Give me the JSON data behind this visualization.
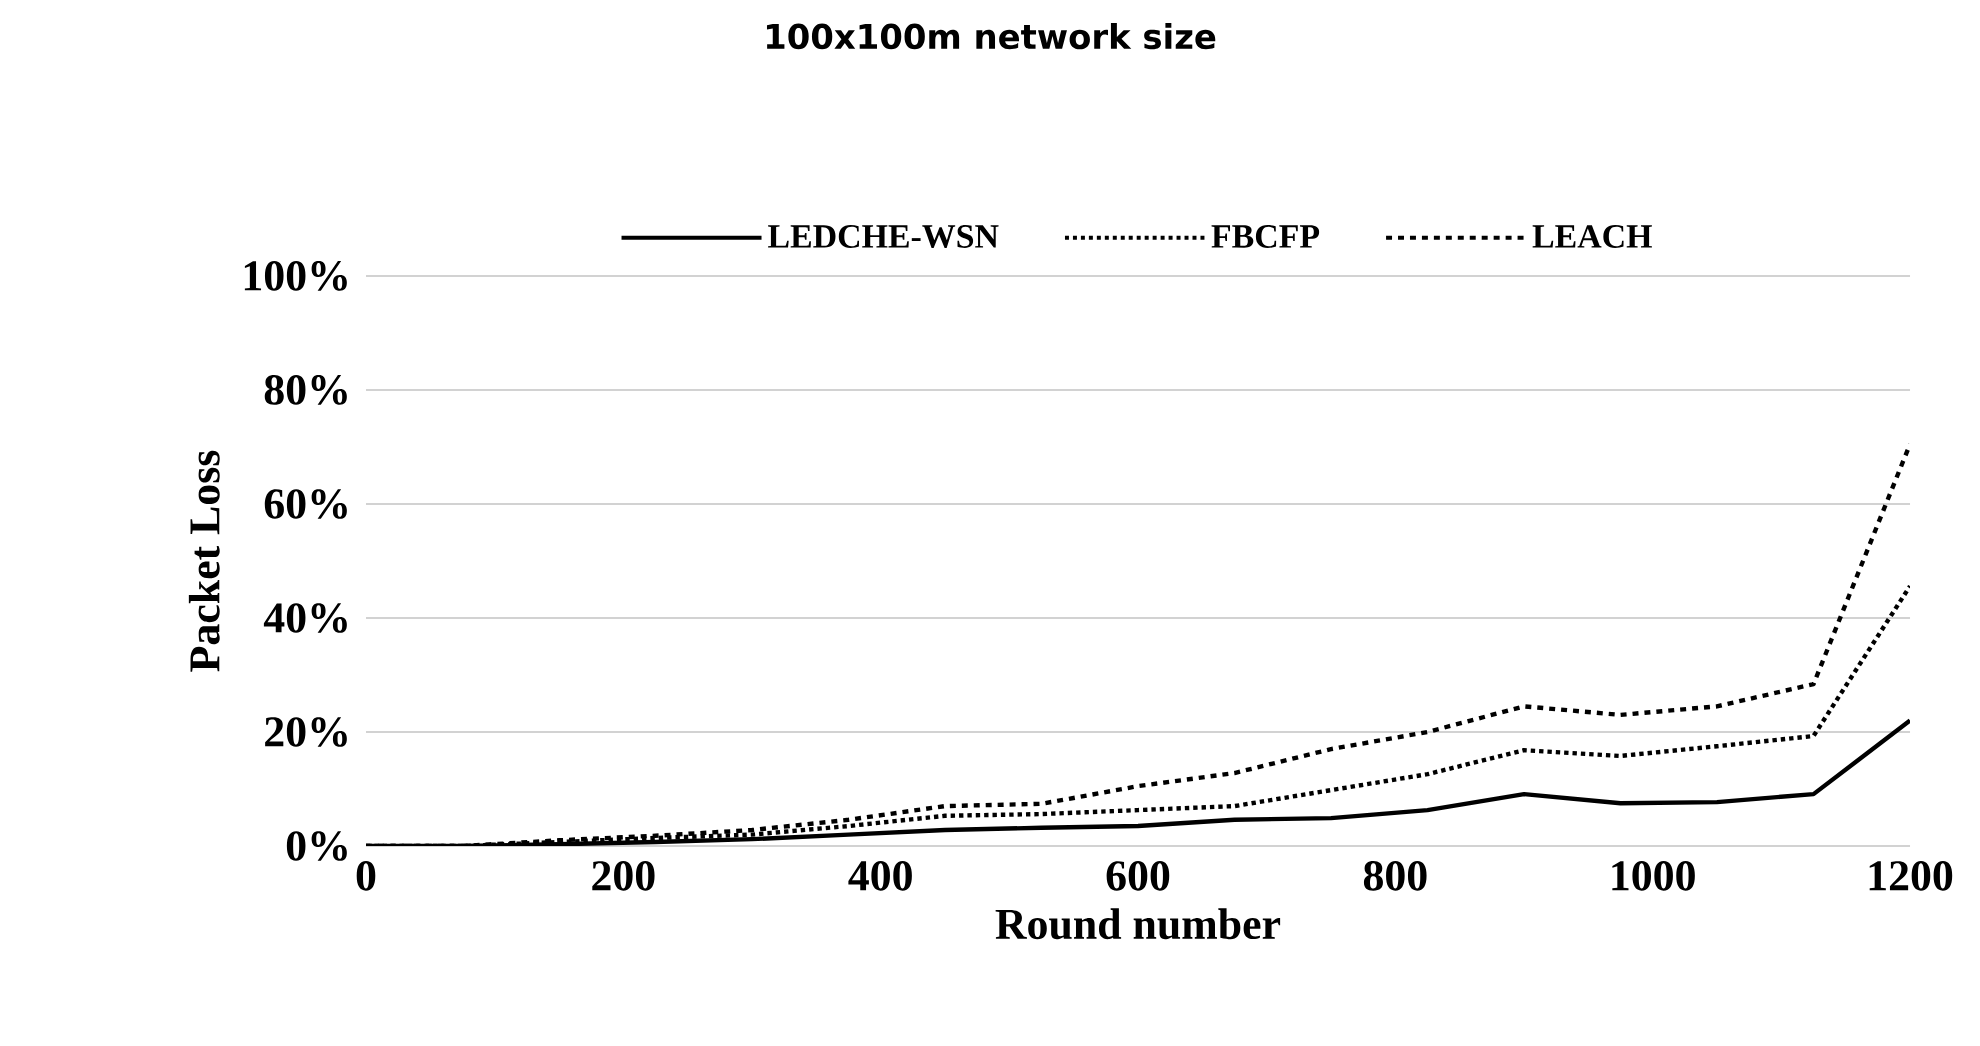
{
  "chart_data": {
    "type": "line",
    "title": "100x100m network size",
    "xlabel": "Round number",
    "ylabel": "Packet Loss",
    "x": [
      0,
      75,
      150,
      225,
      300,
      375,
      450,
      525,
      600,
      675,
      750,
      825,
      900,
      975,
      1050,
      1125,
      1200
    ],
    "series": [
      {
        "name": "LEDCHE-WSN",
        "color": "#000000",
        "line_style": "solid",
        "values": [
          0,
          0,
          0.3,
          0.7,
          1.2,
          2,
          2.8,
          3.2,
          3.5,
          4.6,
          4.9,
          6.3,
          9.1,
          7.5,
          7.7,
          9.1,
          22
        ]
      },
      {
        "name": "FBCFP",
        "color": "#000000",
        "line_style": "dotted",
        "values": [
          0,
          0,
          0.7,
          1.4,
          2,
          3.5,
          5.3,
          5.6,
          6.3,
          7,
          9.8,
          12.6,
          16.8,
          15.8,
          17.5,
          19.3,
          45.6
        ]
      },
      {
        "name": "LEACH",
        "color": "#000000",
        "line_style": "dashed",
        "values": [
          0,
          0,
          1,
          1.8,
          2.8,
          4.6,
          7,
          7.4,
          10.5,
          12.8,
          17,
          20,
          24.5,
          23,
          24.5,
          28.4,
          70.5
        ]
      }
    ],
    "xlim": [
      0,
      1200
    ],
    "ylim": [
      0,
      100
    ],
    "xticks": [
      0,
      200,
      400,
      600,
      800,
      1000,
      1200
    ],
    "yticks": [
      {
        "value": 0,
        "label": "0%"
      },
      {
        "value": 20,
        "label": "20%"
      },
      {
        "value": 40,
        "label": "40%"
      },
      {
        "value": 60,
        "label": "60%"
      },
      {
        "value": 80,
        "label": "80%"
      },
      {
        "value": 100,
        "label": "100%"
      }
    ],
    "grid": "y",
    "legend": "top",
    "marker": "none"
  }
}
